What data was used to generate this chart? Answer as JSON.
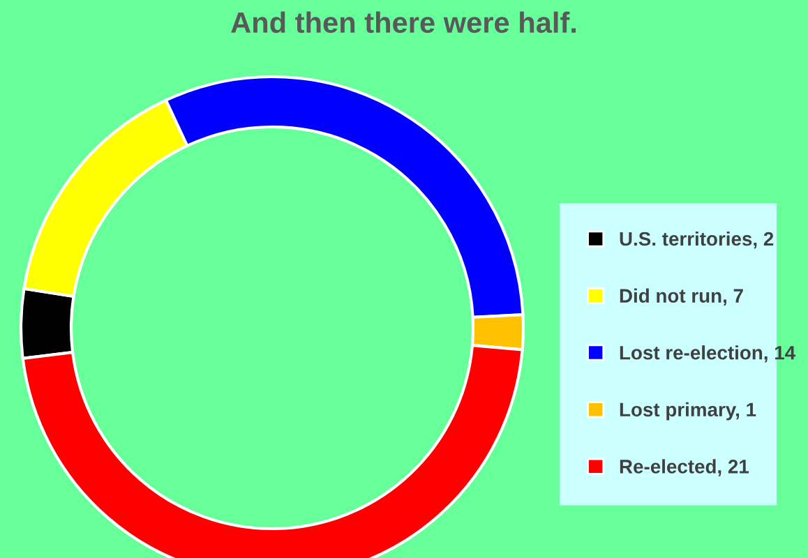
{
  "chart_data": {
    "type": "donut",
    "title": "And then there were half.",
    "categories": [
      "U.S. territories, 2",
      "Did not run, 7",
      "Lost re-election, 14",
      "Lost primary, 1",
      "Re-elected, 21"
    ],
    "values": [
      2,
      7,
      14,
      1,
      21
    ],
    "colors": [
      "#000000",
      "#ffff00",
      "#0000ff",
      "#ffc000",
      "#ff0000"
    ],
    "legend": "right"
  }
}
